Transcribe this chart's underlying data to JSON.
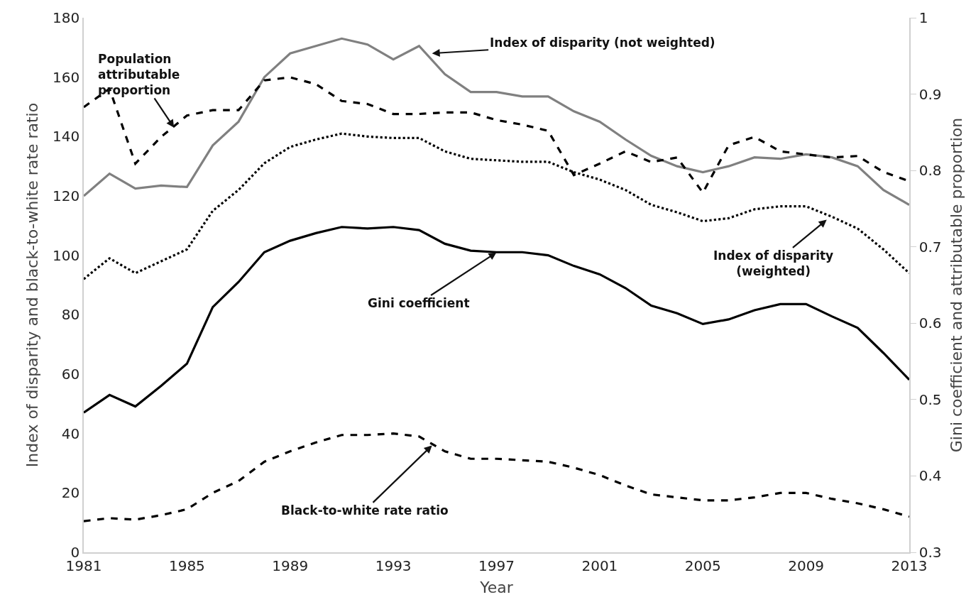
{
  "chart_data": {
    "type": "line",
    "x": [
      1981,
      1982,
      1983,
      1984,
      1985,
      1986,
      1987,
      1988,
      1989,
      1990,
      1991,
      1992,
      1993,
      1994,
      1995,
      1996,
      1997,
      1998,
      1999,
      2000,
      2001,
      2002,
      2003,
      2004,
      2005,
      2006,
      2007,
      2008,
      2009,
      2010,
      2011,
      2012,
      2013
    ],
    "xlabel": "Year",
    "ylabel": "Index of disparity and black-to-white rate ratio",
    "y2label": "Gini coefficient and attributable proportion",
    "xlim": [
      1981,
      2013
    ],
    "xticks": [
      1981,
      1985,
      1989,
      1993,
      1997,
      2001,
      2005,
      2009,
      2013
    ],
    "ylim": [
      0,
      180
    ],
    "yticks": [
      0,
      20,
      40,
      60,
      80,
      100,
      120,
      140,
      160,
      180
    ],
    "y2lim": [
      0.3,
      1
    ],
    "y2ticks": [
      0.3,
      0.4,
      0.5,
      0.6,
      0.7,
      0.8,
      0.9,
      1
    ],
    "marker": "none",
    "series": [
      {
        "color": "#808080",
        "line_style": "solid",
        "values": [
          120,
          127.5,
          122.5,
          123.5,
          123,
          137,
          145,
          160,
          168,
          170.5,
          173,
          171,
          166,
          170.5,
          161,
          155,
          155,
          153.5,
          153.5,
          148.5,
          145,
          139,
          133.5,
          130,
          128,
          130,
          133,
          132.5,
          134,
          133,
          130,
          122,
          117
        ]
      },
      {
        "color": "#000000",
        "line_style": "dotted",
        "values": [
          92,
          99,
          94,
          98,
          102,
          115,
          122,
          131,
          136.5,
          139,
          141,
          140,
          139.5,
          139.5,
          135,
          132.5,
          132,
          131.5,
          131.5,
          128,
          125.5,
          122,
          117,
          114.5,
          111.5,
          112.5,
          115.5,
          116.5,
          116.5,
          113,
          109,
          102,
          94
        ]
      },
      {
        "color": "#000000",
        "line_style": "dashed",
        "values": [
          10.5,
          11.5,
          11,
          12.5,
          14.5,
          20,
          24,
          30.5,
          34,
          37,
          39.5,
          39.5,
          40,
          39,
          34,
          31.5,
          31.5,
          31,
          30.5,
          28.5,
          26,
          22.5,
          19.5,
          18.5,
          17.5,
          17.5,
          18.5,
          20,
          20,
          18,
          16.5,
          14.5,
          12
        ]
      },
      {
        "color": "#000000",
        "line_style": "solid",
        "axis": "y2",
        "values": [
          0.483,
          0.506,
          0.491,
          0.518,
          0.547,
          0.621,
          0.654,
          0.693,
          0.708,
          0.718,
          0.726,
          0.724,
          0.726,
          0.722,
          0.704,
          0.695,
          0.693,
          0.693,
          0.689,
          0.675,
          0.664,
          0.646,
          0.623,
          0.613,
          0.599,
          0.605,
          0.617,
          0.625,
          0.625,
          0.609,
          0.594,
          0.561,
          0.526
        ]
      },
      {
        "color": "#000000",
        "line_style": "dashed",
        "axis": "y2",
        "values": [
          0.883,
          0.907,
          0.809,
          0.844,
          0.872,
          0.879,
          0.879,
          0.918,
          0.922,
          0.913,
          0.891,
          0.887,
          0.874,
          0.874,
          0.876,
          0.876,
          0.866,
          0.86,
          0.852,
          0.794,
          0.809,
          0.825,
          0.811,
          0.817,
          0.771,
          0.833,
          0.844,
          0.825,
          0.821,
          0.817,
          0.819,
          0.798,
          0.786
        ]
      }
    ],
    "annotations": [
      {
        "text": "Population\nattributable\nproportion",
        "x": 1984.5,
        "y": 143
      },
      {
        "text": "Index of disparity (not weighted)",
        "x": 1994.5,
        "y": 168
      },
      {
        "text": "Index of disparity\n(weighted)",
        "x": 2009.8,
        "y": 112
      },
      {
        "text": "Gini coefficient",
        "x": 1997,
        "y": 101
      },
      {
        "text": "Black-to-white rate ratio",
        "x": 1994.5,
        "y": 36
      }
    ]
  }
}
